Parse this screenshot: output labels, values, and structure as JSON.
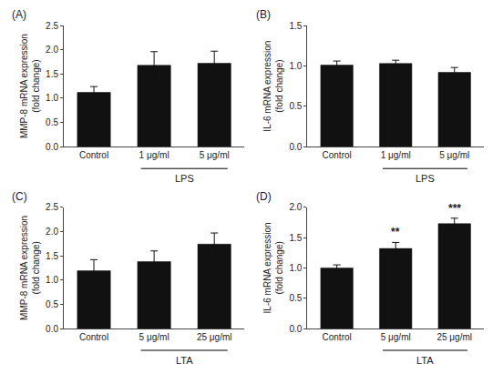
{
  "chart_data": [
    {
      "type": "bar",
      "title": "(A)",
      "categories": [
        "Control",
        "1 μg/ml",
        "5 μg/ml"
      ],
      "values": [
        1.12,
        1.68,
        1.72
      ],
      "errors": [
        0.12,
        0.28,
        0.25
      ],
      "ylabel": "MMP-8 mRNA expression\n(fold change)",
      "xlabel": "LPS",
      "ylim": [
        0,
        2.5
      ],
      "yticks": [
        {
          "value": 0.0,
          "label": "0.0"
        },
        0.5,
        {
          "value": 1.0,
          "label": "1.0"
        },
        1.5,
        {
          "value": 2.0,
          "label": "2.0"
        },
        2.5
      ],
      "color": "#111111",
      "grid": false
    },
    {
      "type": "bar",
      "title": "(B)",
      "categories": [
        "Control",
        "1 μg/ml",
        "5 μg/ml"
      ],
      "values": [
        1.01,
        1.03,
        0.92
      ],
      "errors": [
        0.05,
        0.04,
        0.06
      ],
      "ylabel": "IL-6 mRNA expression\n(fold change)",
      "xlabel": "LPS",
      "ylim": [
        0,
        1.5
      ],
      "yticks": [
        {
          "value": 0.0,
          "label": "0.0"
        },
        0.5,
        {
          "value": 1.0,
          "label": "1.0"
        },
        1.5
      ],
      "color": "#111111",
      "grid": false
    },
    {
      "type": "bar",
      "title": "(C)",
      "categories": [
        "Control",
        "5 μg/ml",
        "25 μg/ml"
      ],
      "values": [
        1.19,
        1.38,
        1.74
      ],
      "errors": [
        0.23,
        0.22,
        0.23
      ],
      "ylabel": "MMP-8 mRNA expression\n(fold change)",
      "xlabel": "LTA",
      "ylim": [
        0,
        2.5
      ],
      "yticks": [
        {
          "value": 0.0,
          "label": "0.0"
        },
        0.5,
        {
          "value": 1.0,
          "label": "1.0"
        },
        1.5,
        {
          "value": 2.0,
          "label": "2.0"
        },
        2.5
      ],
      "color": "#111111",
      "grid": false
    },
    {
      "type": "bar",
      "title": "(D)",
      "categories": [
        "Control",
        "5 μg/ml",
        "25 μg/ml"
      ],
      "values": [
        1.0,
        1.32,
        1.73
      ],
      "errors": [
        0.05,
        0.1,
        0.09
      ],
      "ylabel": "IL-6 mRNA expression\n(fold change)",
      "xlabel": "LTA",
      "ylim": [
        0,
        2.0
      ],
      "yticks": [
        {
          "value": 0.0,
          "label": "0.0"
        },
        0.5,
        {
          "value": 1.0,
          "label": "1.0"
        },
        1.5,
        {
          "value": 2.0,
          "label": "2.0"
        }
      ],
      "annotations": [
        {
          "x": "5 μg/ml",
          "text": "**"
        },
        {
          "x": "25 μg/ml",
          "text": "***"
        }
      ],
      "color": "#111111",
      "grid": false
    }
  ]
}
